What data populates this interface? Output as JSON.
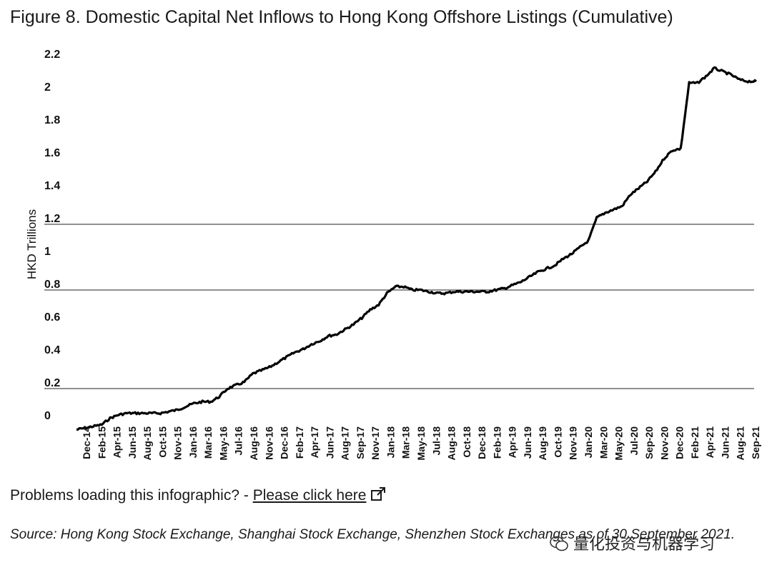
{
  "title": "Figure 8. Domestic Capital Net Inflows to Hong Kong Offshore Listings (Cumulative)",
  "problems": {
    "text": "Problems loading this infographic? - ",
    "link_label": "Please click here",
    "link_icon": "external-link-icon"
  },
  "source": "Source: Hong Kong Stock Exchange, Shanghai Stock Exchange, Shenzhen Stock Exchanges as of 30 September 2021.",
  "watermark": {
    "text": "量化投资与机器学习",
    "icon": "wechat-icon"
  },
  "chart_data": {
    "type": "line",
    "title": "",
    "xlabel": "",
    "ylabel": "HKD Trillions",
    "ylim": [
      0,
      2.2
    ],
    "y_ticks": [
      "2.2",
      "2",
      "1.8",
      "1.6",
      "1.4",
      "1.2",
      "1",
      "0.8",
      "0.6",
      "0.4",
      "0.2",
      "0"
    ],
    "gridlines_at": [
      0.2,
      0.8,
      1.2
    ],
    "x_tick_labels": [
      "Dec-14",
      "Feb-15",
      "Apr-15",
      "Jun-15",
      "Aug-15",
      "Oct-15",
      "Nov-15",
      "Jan-16",
      "Mar-16",
      "May-16",
      "Jul-16",
      "Aug-16",
      "Nov-16",
      "Dec-16",
      "Feb-17",
      "Apr-17",
      "Jun-17",
      "Aug-17",
      "Sep-17",
      "Nov-17",
      "Jan-18",
      "Mar-18",
      "May-18",
      "Jul-18",
      "Aug-18",
      "Oct-18",
      "Dec-18",
      "Feb-19",
      "Apr-19",
      "Jun-19",
      "Aug-19",
      "Oct-19",
      "Nov-19",
      "Jan-20",
      "Mar-20",
      "May-20",
      "Jul-20",
      "Sep-20",
      "Nov-20",
      "Dec-20",
      "Feb-21",
      "Apr-21",
      "Jun-21",
      "Aug-21",
      "Sep-21"
    ],
    "series": [
      {
        "name": "",
        "color": "#000000",
        "x": [
          "2014-12",
          "2015-01",
          "2015-02",
          "2015-03",
          "2015-04",
          "2015-05",
          "2015-06",
          "2015-07",
          "2015-08",
          "2015-09",
          "2015-10",
          "2015-11",
          "2015-12",
          "2016-01",
          "2016-02",
          "2016-03",
          "2016-04",
          "2016-05",
          "2016-06",
          "2016-07",
          "2016-08",
          "2016-09",
          "2016-10",
          "2016-11",
          "2016-12",
          "2017-01",
          "2017-02",
          "2017-03",
          "2017-04",
          "2017-05",
          "2017-06",
          "2017-07",
          "2017-08",
          "2017-09",
          "2017-10",
          "2017-11",
          "2017-12",
          "2018-01",
          "2018-02",
          "2018-03",
          "2018-04",
          "2018-05",
          "2018-06",
          "2018-07",
          "2018-08",
          "2018-09",
          "2018-10",
          "2018-11",
          "2018-12",
          "2019-01",
          "2019-02",
          "2019-03",
          "2019-04",
          "2019-05",
          "2019-06",
          "2019-07",
          "2019-08",
          "2019-09",
          "2019-10",
          "2019-11",
          "2019-12",
          "2020-01",
          "2020-02",
          "2020-03",
          "2020-04",
          "2020-05",
          "2020-06",
          "2020-07",
          "2020-08",
          "2020-09",
          "2020-10",
          "2020-11",
          "2020-12",
          "2021-01",
          "2021-02",
          "2021-03",
          "2021-04",
          "2021-05",
          "2021-06",
          "2021-07",
          "2021-08",
          "2021-09"
        ],
        "values": [
          -0.05,
          -0.04,
          -0.03,
          -0.02,
          0.02,
          0.04,
          0.05,
          0.05,
          0.05,
          0.05,
          0.05,
          0.06,
          0.07,
          0.09,
          0.11,
          0.12,
          0.12,
          0.15,
          0.2,
          0.22,
          0.24,
          0.29,
          0.31,
          0.33,
          0.36,
          0.39,
          0.42,
          0.44,
          0.47,
          0.49,
          0.52,
          0.53,
          0.56,
          0.59,
          0.63,
          0.68,
          0.71,
          0.78,
          0.82,
          0.82,
          0.8,
          0.8,
          0.79,
          0.78,
          0.78,
          0.79,
          0.79,
          0.79,
          0.79,
          0.79,
          0.8,
          0.81,
          0.83,
          0.85,
          0.88,
          0.91,
          0.93,
          0.95,
          0.99,
          1.02,
          1.06,
          1.1,
          1.24,
          1.27,
          1.29,
          1.31,
          1.38,
          1.42,
          1.46,
          1.52,
          1.6,
          1.65,
          1.66,
          2.06,
          2.06,
          2.1,
          2.15,
          2.13,
          2.11,
          2.08,
          2.07,
          2.07
        ]
      }
    ],
    "grid": "partial horizontal",
    "legend": "none"
  }
}
